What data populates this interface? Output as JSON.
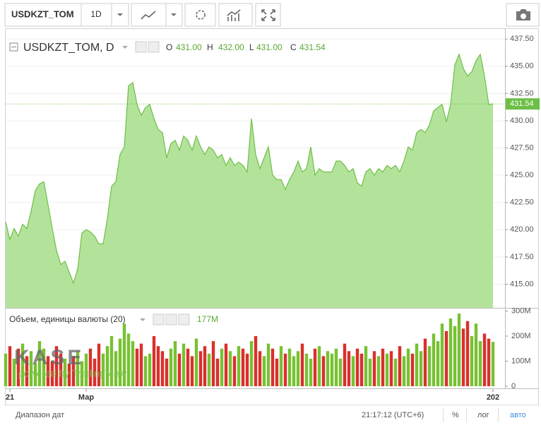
{
  "toolbar": {
    "symbol": "USDKZT_TOM",
    "interval": "1D"
  },
  "chart_data": [
    {
      "type": "area",
      "title": "USDKZT_TOM, D",
      "ohlc": [
        {
          "label": "O",
          "value": "431.00"
        },
        {
          "label": "H",
          "value": "432.00"
        },
        {
          "label": "L",
          "value": "431.00"
        },
        {
          "label": "C",
          "value": "431.54"
        }
      ],
      "categories": [
        null,
        "21",
        null,
        null,
        null,
        null,
        null,
        null,
        null,
        null,
        null,
        null,
        null,
        null,
        null,
        null,
        null,
        null,
        null,
        "Мар",
        null,
        null,
        null,
        null,
        null,
        null,
        null,
        null,
        null,
        null,
        null,
        null,
        null,
        null,
        null,
        null,
        null,
        null,
        null,
        null,
        null,
        null,
        null,
        null,
        null,
        null,
        null,
        null,
        null,
        null,
        null,
        null,
        null,
        null,
        null,
        null,
        null,
        null,
        null,
        null,
        null,
        null,
        null,
        null,
        null,
        null,
        null,
        null,
        null,
        null,
        null,
        null,
        null,
        null,
        null,
        null,
        null,
        null,
        null,
        null,
        null,
        null,
        null,
        null,
        null,
        null,
        null,
        null,
        null,
        null,
        null,
        null,
        null,
        null,
        null,
        null,
        null,
        null,
        null,
        null,
        null,
        null,
        null,
        null,
        null,
        null,
        null,
        null,
        null,
        null,
        null,
        null,
        null,
        null,
        null,
        "202"
      ],
      "values": [
        420.7,
        419.1,
        420.1,
        419.4,
        420.5,
        420.1,
        421.7,
        423.6,
        424.2,
        424.4,
        422.3,
        420.1,
        418.1,
        416.8,
        417.1,
        416.1,
        415.1,
        416.4,
        419.7,
        420.0,
        419.8,
        419.4,
        418.7,
        418.7,
        421.0,
        424.0,
        424.4,
        426.9,
        427.6,
        433.2,
        433.5,
        431.5,
        430.5,
        431.2,
        431.5,
        430.2,
        429.2,
        428.9,
        426.6,
        427.9,
        428.2,
        427.3,
        428.6,
        428.2,
        427.3,
        428.6,
        427.6,
        426.9,
        427.6,
        427.3,
        426.6,
        426.9,
        425.9,
        426.6,
        425.9,
        426.2,
        425.9,
        425.3,
        430.2,
        426.9,
        425.6,
        426.6,
        427.6,
        425.0,
        424.6,
        424.6,
        423.7,
        424.6,
        425.3,
        426.3,
        425.3,
        425.6,
        427.6,
        425.0,
        425.6,
        425.3,
        425.3,
        425.3,
        426.3,
        426.3,
        425.9,
        425.3,
        425.6,
        424.3,
        424.0,
        425.3,
        425.6,
        425.0,
        425.6,
        425.3,
        425.9,
        425.6,
        425.9,
        425.3,
        426.3,
        427.6,
        427.3,
        428.9,
        429.2,
        428.9,
        429.6,
        430.9,
        431.2,
        431.5,
        429.9,
        431.5,
        435.1,
        436.1,
        434.8,
        434.1,
        434.5,
        435.5,
        436.1,
        434.1,
        431.5,
        431.54
      ],
      "color": "#b3e39b",
      "line_color": "#6cbf45",
      "ylim": [
        412.83,
        438.42
      ],
      "yticks": [
        {
          "value": 415,
          "label": "415.00"
        },
        {
          "value": 417.5,
          "label": "417.50"
        },
        {
          "value": 420,
          "label": "420.00"
        },
        {
          "value": 422.5,
          "label": "422.50"
        },
        {
          "value": 425,
          "label": "425.00"
        },
        {
          "value": 427.5,
          "label": "427.50"
        },
        {
          "value": 430,
          "label": "430.00"
        },
        {
          "value": 432.5,
          "label": "432.50"
        },
        {
          "value": 435,
          "label": "435.00"
        },
        {
          "value": 437.5,
          "label": "437.50"
        }
      ],
      "last_price": {
        "value": 431.54,
        "label": "431.54"
      },
      "grid": true
    },
    {
      "type": "bar",
      "title": "Объем, единицы валюты (20)",
      "last_value": "177M",
      "values": [
        130,
        160,
        110,
        150,
        170,
        120,
        140,
        90,
        180,
        150,
        120,
        100,
        160,
        130,
        110,
        90,
        120,
        140,
        100,
        130,
        150,
        110,
        170,
        130,
        160,
        200,
        140,
        190,
        250,
        210,
        180,
        150,
        170,
        120,
        130,
        200,
        160,
        140,
        110,
        150,
        180,
        130,
        170,
        150,
        120,
        190,
        140,
        160,
        130,
        180,
        110,
        150,
        170,
        140,
        120,
        160,
        150,
        130,
        180,
        200,
        140,
        120,
        170,
        150,
        110,
        160,
        130,
        150,
        120,
        140,
        170,
        130,
        110,
        150,
        160,
        120,
        140,
        130,
        150,
        110,
        170,
        140,
        120,
        150,
        130,
        160,
        110,
        140,
        120,
        150,
        130,
        140,
        110,
        160,
        120,
        150,
        130,
        170,
        140,
        190,
        160,
        210,
        180,
        250,
        220,
        270,
        240,
        290,
        230,
        260,
        200,
        250,
        180,
        210,
        190,
        177
      ],
      "up_color": "#77c132",
      "down_color": "#d9302c",
      "ylim": [
        -8.5,
        310
      ],
      "yticks": [
        {
          "value": 0,
          "label": "0"
        },
        {
          "value": 100,
          "label": "100M"
        },
        {
          "value": 200,
          "label": "200M"
        },
        {
          "value": 300,
          "label": "300M"
        }
      ]
    }
  ],
  "watermark": {
    "logo": "KASE",
    "text": "powered by TradingView"
  },
  "footer": {
    "date_range": "Диапазон дат",
    "time": "21:17:12 (UTC+6)",
    "percent": "%",
    "log": "лог",
    "auto": "авто"
  }
}
